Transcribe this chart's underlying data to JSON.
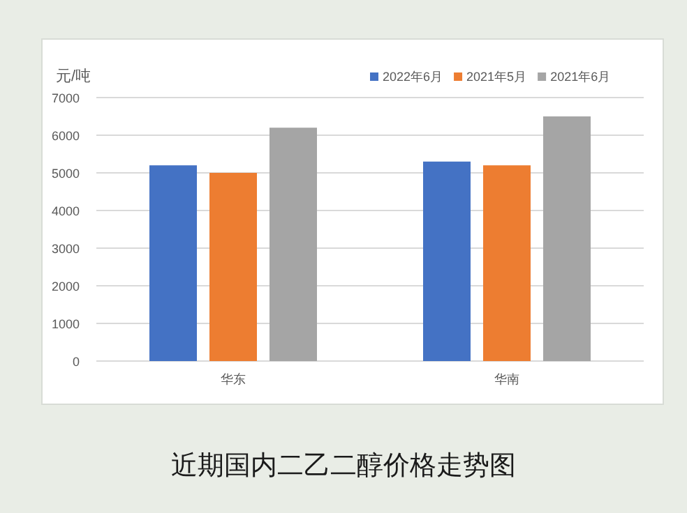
{
  "chart_data": {
    "type": "bar",
    "title": "近期国内二乙二醇价格走势图",
    "ylabel": "元/吨",
    "categories": [
      "华东",
      "华南"
    ],
    "series": [
      {
        "name": "2022年6月",
        "color": "#4472c4",
        "values": [
          5200,
          5300
        ]
      },
      {
        "name": "2021年5月",
        "color": "#ed7d31",
        "values": [
          5000,
          5200
        ]
      },
      {
        "name": "2021年6月",
        "color": "#a5a5a5",
        "values": [
          6200,
          6500
        ]
      }
    ],
    "ylim": [
      0,
      7000
    ],
    "yticks": [
      0,
      1000,
      2000,
      3000,
      4000,
      5000,
      6000,
      7000
    ],
    "grid": "y",
    "legend": "top right"
  }
}
